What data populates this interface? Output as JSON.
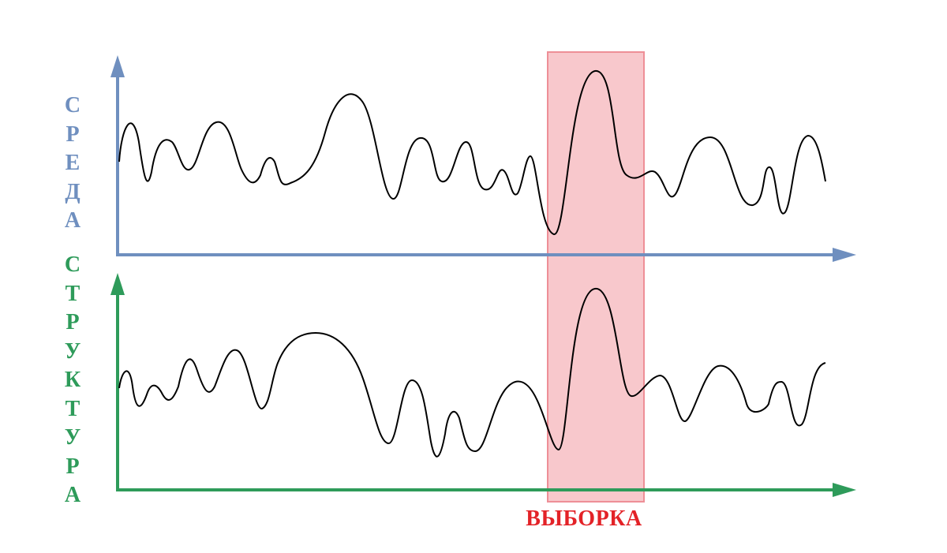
{
  "colors": {
    "environment": "#6f8fbf",
    "structure": "#2e9b5a",
    "sample_fill": "#f8c8cc",
    "sample_border": "#ee8f97",
    "sample_text": "#e32227",
    "curve": "#000000"
  },
  "labels": {
    "environment": "СРЕДА",
    "structure": "СТРУКТУРА",
    "sample": "ВЫБОРКА"
  }
}
